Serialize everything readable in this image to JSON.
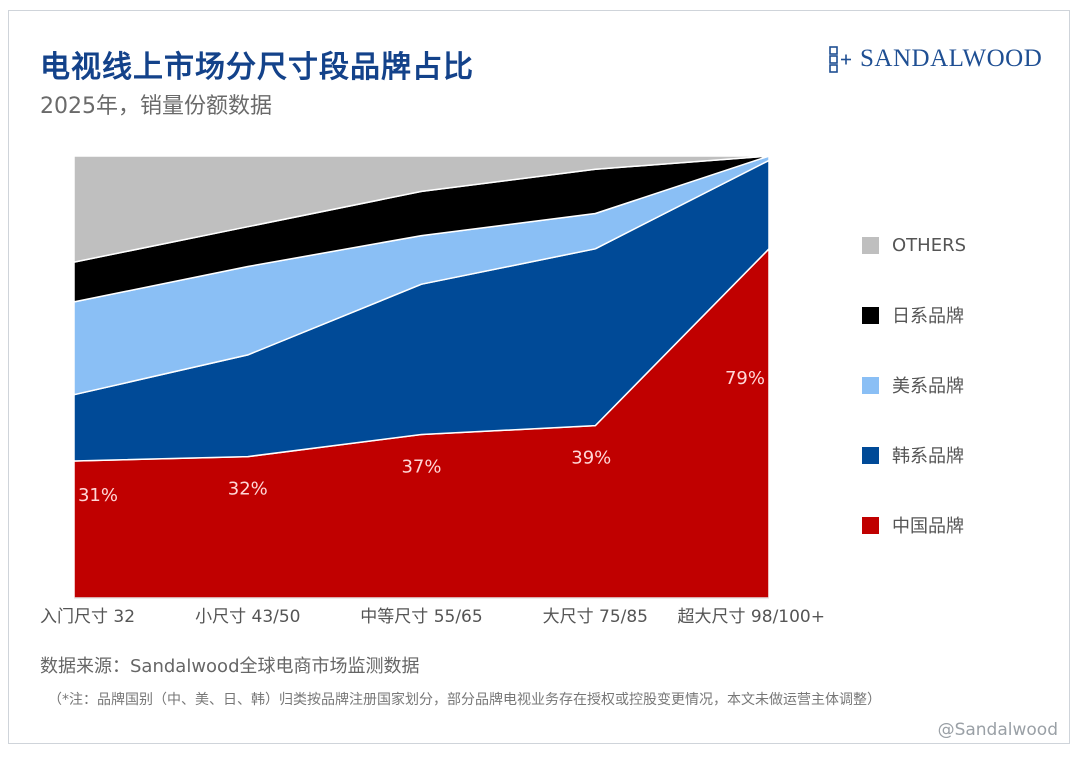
{
  "header": {
    "title": "电视线上市场分尺寸段品牌占比",
    "subtitle": "2025年，销量份额数据"
  },
  "logo": {
    "text": "SANDALWOOD",
    "color": "#1f4f93"
  },
  "footer": {
    "source": "数据来源：Sandalwood全球电商市场监测数据",
    "note": "（*注：品牌国别（中、美、日、韩）归类按品牌注册国家划分，部分品牌电视业务存在授权或控股变更情况，本文未做运营主体调整）",
    "watermark": "@Sandalwood"
  },
  "chart_data": {
    "type": "area",
    "stacked": true,
    "percent": true,
    "categories": [
      "入门尺寸 32",
      "小尺寸 43/50",
      "中等尺寸 55/65",
      "大尺寸 75/85",
      "超大尺寸 98/100+"
    ],
    "ylim": [
      0,
      100
    ],
    "legend_position": "right",
    "grid": false,
    "series": [
      {
        "name": "中国品牌",
        "color": "#c00000",
        "values": [
          31,
          32,
          37,
          39,
          79
        ],
        "labels": [
          "31%",
          "32%",
          "37%",
          "39%",
          "79%"
        ]
      },
      {
        "name": "韩系品牌",
        "color": "#004a97",
        "values": [
          15,
          23,
          34,
          40,
          20
        ]
      },
      {
        "name": "美系品牌",
        "color": "#8abff5",
        "values": [
          21,
          20,
          11,
          8,
          1
        ]
      },
      {
        "name": "日系品牌",
        "color": "#000000",
        "values": [
          9,
          9,
          10,
          10,
          0
        ]
      },
      {
        "name": "OTHERS",
        "color": "#bfbfbf",
        "values": [
          24,
          16,
          8,
          3,
          0
        ]
      }
    ]
  }
}
